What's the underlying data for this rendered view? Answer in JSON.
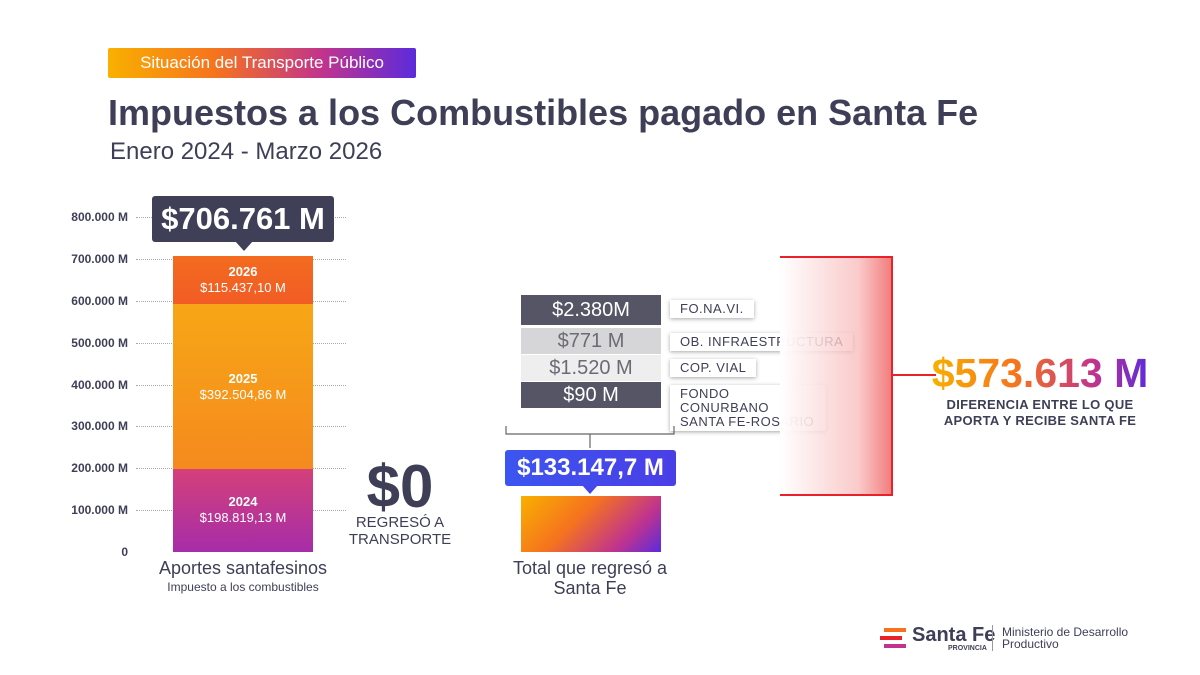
{
  "header": {
    "tag": "Situación del Transporte Público",
    "title": "Impuestos a los Combustibles pagado en Santa Fe",
    "subtitle": "Enero 2024 - Marzo 2026"
  },
  "colors": {
    "dark": "#3e3f57",
    "seg2024": "#c0338e",
    "seg2025": "#f8a012",
    "seg2026": "#f36b1f",
    "blue": "#3c55f0",
    "red": "#e8212b"
  },
  "chart_data": {
    "type": "bar",
    "title": "Impuestos a los Combustibles pagado en Santa Fe",
    "ylim": [
      0,
      800000
    ],
    "yticks": [
      "800.000 M",
      "700.000 M",
      "600.000 M",
      "500.000 M",
      "400.000 M",
      "300.000 M",
      "200.000 M",
      "100.000 M",
      "0"
    ],
    "ytick_values": [
      800000,
      700000,
      600000,
      500000,
      400000,
      300000,
      200000,
      100000,
      0
    ],
    "categories": [
      "Aportes santafesinos",
      "Total que regresó a Santa Fe"
    ],
    "category_sub": [
      "Impuesto a los combustibles",
      ""
    ],
    "stacks": [
      {
        "year": "2024",
        "label": "$198.819,13 M",
        "value": 198819.13
      },
      {
        "year": "2025",
        "label": "$392.504,86 M",
        "value": 392504.86
      },
      {
        "year": "2026",
        "label": "$115.437,10 M",
        "value": 115437.1
      }
    ],
    "total_label": "$706.761 M",
    "total_value": 706761,
    "returned_value": 133147.7,
    "returned_label": "$133.147,7 M",
    "zero_label": "$0",
    "zero_sub": "REGRESÓ A TRANSPORTE",
    "funds": [
      {
        "amount": "$2.380M",
        "name": "FO.NA.VI."
      },
      {
        "amount": "$771 M",
        "name": "OB. INFRAESTRUCTURA"
      },
      {
        "amount": "$1.520 M",
        "name": "COP. VIAL"
      },
      {
        "amount": "$90 M",
        "name": "FONDO CONURBANO SANTA FE-ROSARIO"
      }
    ],
    "difference_label": "$573.613 M",
    "difference_sub": "DIFERENCIA ENTRE LO QUE APORTA Y RECIBE SANTA FE"
  },
  "footer": {
    "logo_name": "Santa Fe",
    "logo_sub": "PROVINCIA",
    "ministry": "Ministerio de Desarrollo Productivo"
  }
}
